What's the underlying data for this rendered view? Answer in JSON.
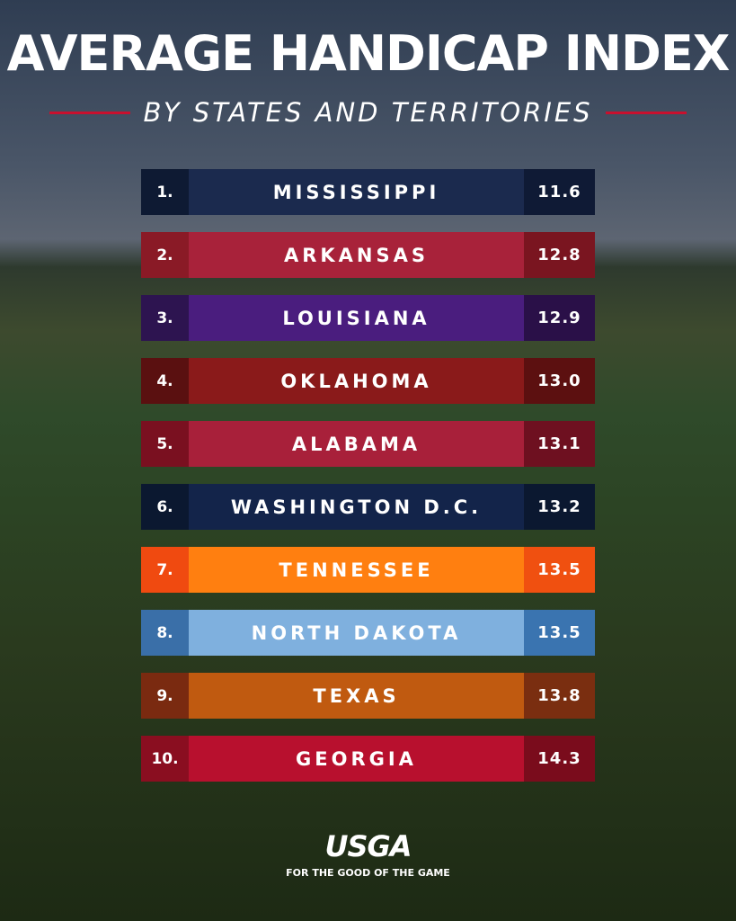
{
  "header": {
    "title": "AVERAGE HANDICAP INDEX",
    "subtitle": "BY STATES AND TERRITORIES"
  },
  "table": {
    "rows": [
      {
        "rank": "1.",
        "name": "MISSISSIPPI",
        "value": "11.6",
        "colors": [
          "#0e1a33",
          "#1b2a4e",
          "#0f1a35"
        ]
      },
      {
        "rank": "2.",
        "name": "ARKANSAS",
        "value": "12.8",
        "colors": [
          "#8a1a26",
          "#a8223a",
          "#7a1520"
        ]
      },
      {
        "rank": "3.",
        "name": "LOUISIANA",
        "value": "12.9",
        "colors": [
          "#2d1450",
          "#4a1d7e",
          "#2a1048"
        ]
      },
      {
        "rank": "4.",
        "name": "OKLAHOMA",
        "value": "13.0",
        "colors": [
          "#5a1010",
          "#8a1a1a",
          "#5c1010"
        ]
      },
      {
        "rank": "5.",
        "name": "ALABAMA",
        "value": "13.1",
        "colors": [
          "#7a1020",
          "#a8203a",
          "#6e1020"
        ]
      },
      {
        "rank": "6.",
        "name": "WASHINGTON D.C.",
        "value": "13.2",
        "colors": [
          "#0b1830",
          "#13244a",
          "#0b1830"
        ]
      },
      {
        "rank": "7.",
        "name": "TENNESSEE",
        "value": "13.5",
        "colors": [
          "#f04a10",
          "#ff7f10",
          "#f05010"
        ]
      },
      {
        "rank": "8.",
        "name": "NORTH DAKOTA",
        "value": "13.5",
        "colors": [
          "#3a6fa8",
          "#7fb0de",
          "#3a74b0"
        ]
      },
      {
        "rank": "9.",
        "name": "TEXAS",
        "value": "13.8",
        "colors": [
          "#7a2a10",
          "#c05a10",
          "#7a2e10"
        ]
      },
      {
        "rank": "10.",
        "name": "GEORGIA",
        "value": "14.3",
        "colors": [
          "#8a0e20",
          "#b8102e",
          "#7a0c1c"
        ]
      }
    ]
  },
  "footer": {
    "logo": "USGA",
    "tagline": "FOR THE GOOD OF THE GAME"
  }
}
